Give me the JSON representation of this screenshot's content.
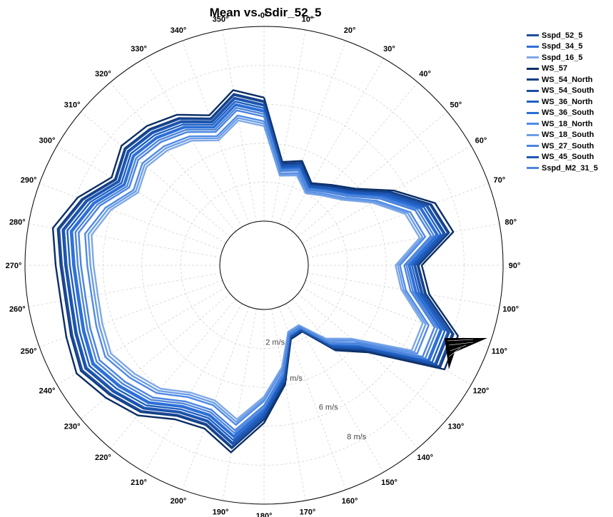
{
  "chart_data": {
    "type": "polar-line",
    "title": "Mean vs. Sdir_52_5",
    "angle_labels": [
      "0°",
      "10°",
      "20°",
      "30°",
      "40°",
      "50°",
      "60°",
      "70°",
      "80°",
      "90°",
      "100°",
      "110°",
      "120°",
      "130°",
      "140°",
      "150°",
      "160°",
      "170°",
      "180°",
      "190°",
      "200°",
      "210°",
      "220°",
      "230°",
      "240°",
      "250°",
      "260°",
      "270°",
      "280°",
      "290°",
      "300°",
      "310°",
      "320°",
      "330°",
      "340°",
      "350°"
    ],
    "ring_labels": [
      "2 m/s",
      "4 m/s",
      "6 m/s",
      "8 m/s"
    ],
    "radial_range": [
      0,
      10
    ],
    "grid": true,
    "legend_position": "right",
    "direction_step_deg": 10,
    "base_profile": [
      6.1,
      3.0,
      3.3,
      2.5,
      3.0,
      3.7,
      5.2,
      6.8,
      7.3,
      5.6,
      6.1,
      8.0,
      8.1,
      4.5,
      3.3,
      1.6,
      1.7,
      3.8,
      5.6,
      7.2,
      6.4,
      6.6,
      7.5,
      8.0,
      8.5,
      8.2,
      8.0,
      8.1,
      8.4,
      7.6,
      6.5,
      7.0,
      6.8,
      6.4,
      5.7,
      6.6
    ],
    "series": [
      {
        "name": "Sspd_52_5",
        "color": "#1f4e9a",
        "scale": 1.0
      },
      {
        "name": "Sspd_34_5",
        "color": "#2f6fd6",
        "scale": 0.93
      },
      {
        "name": "Sspd_16_5",
        "color": "#7fa8e6",
        "scale": 0.8
      },
      {
        "name": "WS_57",
        "color": "#0b2e66",
        "scale": 1.04
      },
      {
        "name": "WS_54_North",
        "color": "#123f86",
        "scale": 1.01
      },
      {
        "name": "WS_54_South",
        "color": "#1a4ea6",
        "scale": 0.98
      },
      {
        "name": "WS_36_North",
        "color": "#1e5fc0",
        "scale": 0.95
      },
      {
        "name": "WS_36_South",
        "color": "#2a6fd8",
        "scale": 0.92
      },
      {
        "name": "WS_18_North",
        "color": "#4f8ae6",
        "scale": 0.84
      },
      {
        "name": "WS_18_South",
        "color": "#6b9de6",
        "scale": 0.82
      },
      {
        "name": "WS_27_South",
        "color": "#4a84e0",
        "scale": 0.88
      },
      {
        "name": "WS_45_South",
        "color": "#1d58b4",
        "scale": 0.97
      },
      {
        "name": "Sspd_M2_31_5",
        "color": "#4f86d8",
        "scale": 0.9
      }
    ]
  }
}
